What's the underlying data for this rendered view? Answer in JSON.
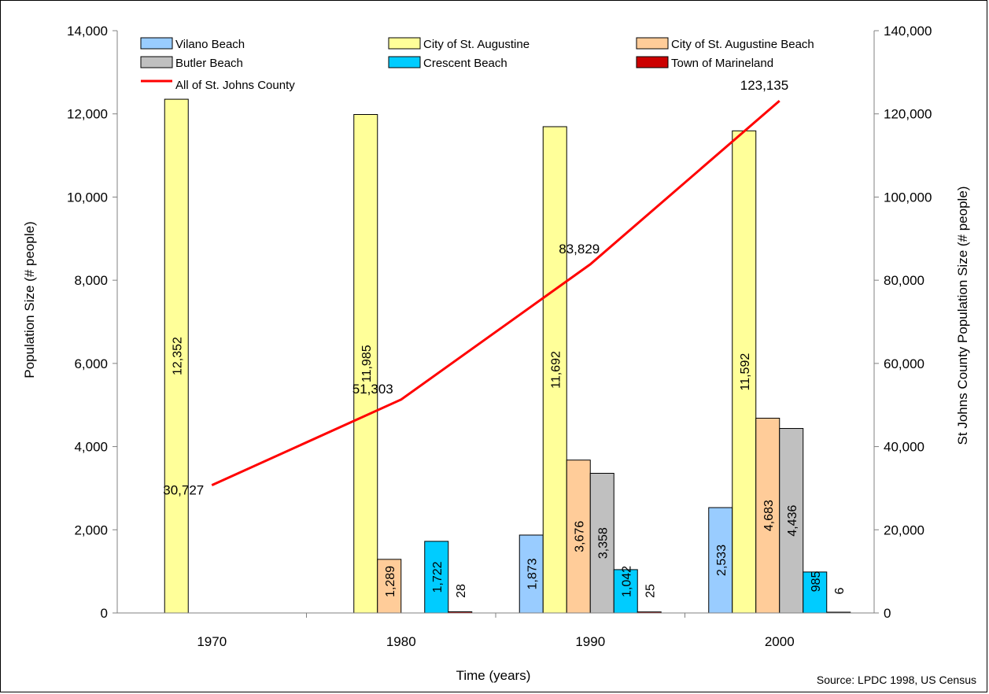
{
  "chart_data": {
    "type": "bar",
    "categories": [
      "1970",
      "1980",
      "1990",
      "2000"
    ],
    "xlabel": "Time (years)",
    "ylabel": "Population Size (# people)",
    "ylabel_right": "St Johns County Population Size (# people)",
    "ylim": [
      0,
      14000
    ],
    "ylim_right": [
      0,
      140000
    ],
    "yticks": [
      "0",
      "2,000",
      "4,000",
      "6,000",
      "8,000",
      "10,000",
      "12,000",
      "14,000"
    ],
    "yticks_right": [
      "0",
      "20,000",
      "40,000",
      "60,000",
      "80,000",
      "100,000",
      "120,000",
      "140,000"
    ],
    "series": [
      {
        "name": "Vilano Beach",
        "color": "#99CCFF",
        "values": [
          null,
          null,
          1873,
          2533
        ],
        "labels": [
          "",
          "",
          "1,873",
          "2,533"
        ]
      },
      {
        "name": "City of St. Augustine",
        "color": "#FFFF99",
        "values": [
          12352,
          11985,
          11692,
          11592
        ],
        "labels": [
          "12,352",
          "11,985",
          "11,692",
          "11,592"
        ]
      },
      {
        "name": "City of St. Augustine Beach",
        "color": "#FFCC99",
        "values": [
          null,
          1289,
          3676,
          4683
        ],
        "labels": [
          "",
          "1,289",
          "3,676",
          "4,683"
        ]
      },
      {
        "name": "Butler Beach",
        "color": "#C0C0C0",
        "values": [
          null,
          null,
          3358,
          4436
        ],
        "labels": [
          "",
          "",
          "3,358",
          "4,436"
        ]
      },
      {
        "name": "Crescent Beach",
        "color": "#00CCFF",
        "values": [
          null,
          1722,
          1042,
          985
        ],
        "labels": [
          "",
          "1,722",
          "1,042",
          "985"
        ]
      },
      {
        "name": "Town of Marineland",
        "color": "#CC0000",
        "values": [
          null,
          28,
          25,
          6
        ],
        "labels": [
          "",
          "28",
          "25",
          "6"
        ]
      }
    ],
    "line_series": {
      "name": "All of St. Johns County",
      "color": "#FF0000",
      "axis": "right",
      "values": [
        30727,
        51303,
        83829,
        123135
      ],
      "labels": [
        "30,727",
        "51,303",
        "83,829",
        "123,135"
      ]
    },
    "legend_position": "top",
    "grid": false
  },
  "source_note": "Source: LPDC 1998, US Census"
}
